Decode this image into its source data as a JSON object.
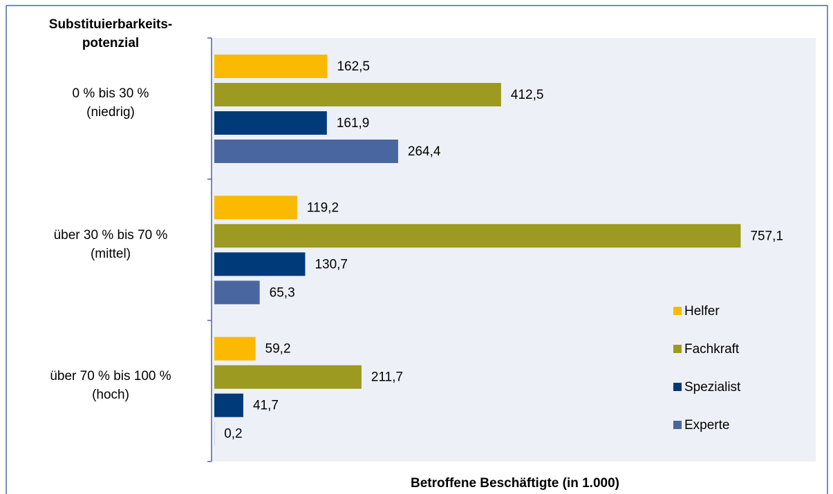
{
  "chart_data": {
    "type": "bar",
    "orientation": "horizontal",
    "title": "Substituierbarkeits-\npotenzial",
    "xlabel": "Betroffene Beschäftigte (in 1.000)",
    "categories": [
      "0 % bis 30 %\n(niedrig)",
      "über 30 % bis 70 %\n(mittel)",
      "über 70 % bis 100 %\n(hoch)"
    ],
    "series": [
      {
        "name": "Helfer",
        "color": "#fbb900",
        "values": [
          162.5,
          119.2,
          59.2
        ],
        "value_labels": [
          "162,5",
          "119,2",
          "59,2"
        ]
      },
      {
        "name": "Fachkraft",
        "color": "#9c9a20",
        "values": [
          412.5,
          757.1,
          211.7
        ],
        "value_labels": [
          "412,5",
          "757,1",
          "211,7"
        ]
      },
      {
        "name": "Spezialist",
        "color": "#003a78",
        "values": [
          161.9,
          130.7,
          41.7
        ],
        "value_labels": [
          "161,9",
          "130,7",
          "41,7"
        ]
      },
      {
        "name": "Experte",
        "color": "#4a66a0",
        "values": [
          264.4,
          65.3,
          0.2
        ],
        "value_labels": [
          "264,4",
          "65,3",
          "0,2"
        ]
      }
    ],
    "xlim": [
      0,
      865
    ],
    "legend": "lower right"
  }
}
